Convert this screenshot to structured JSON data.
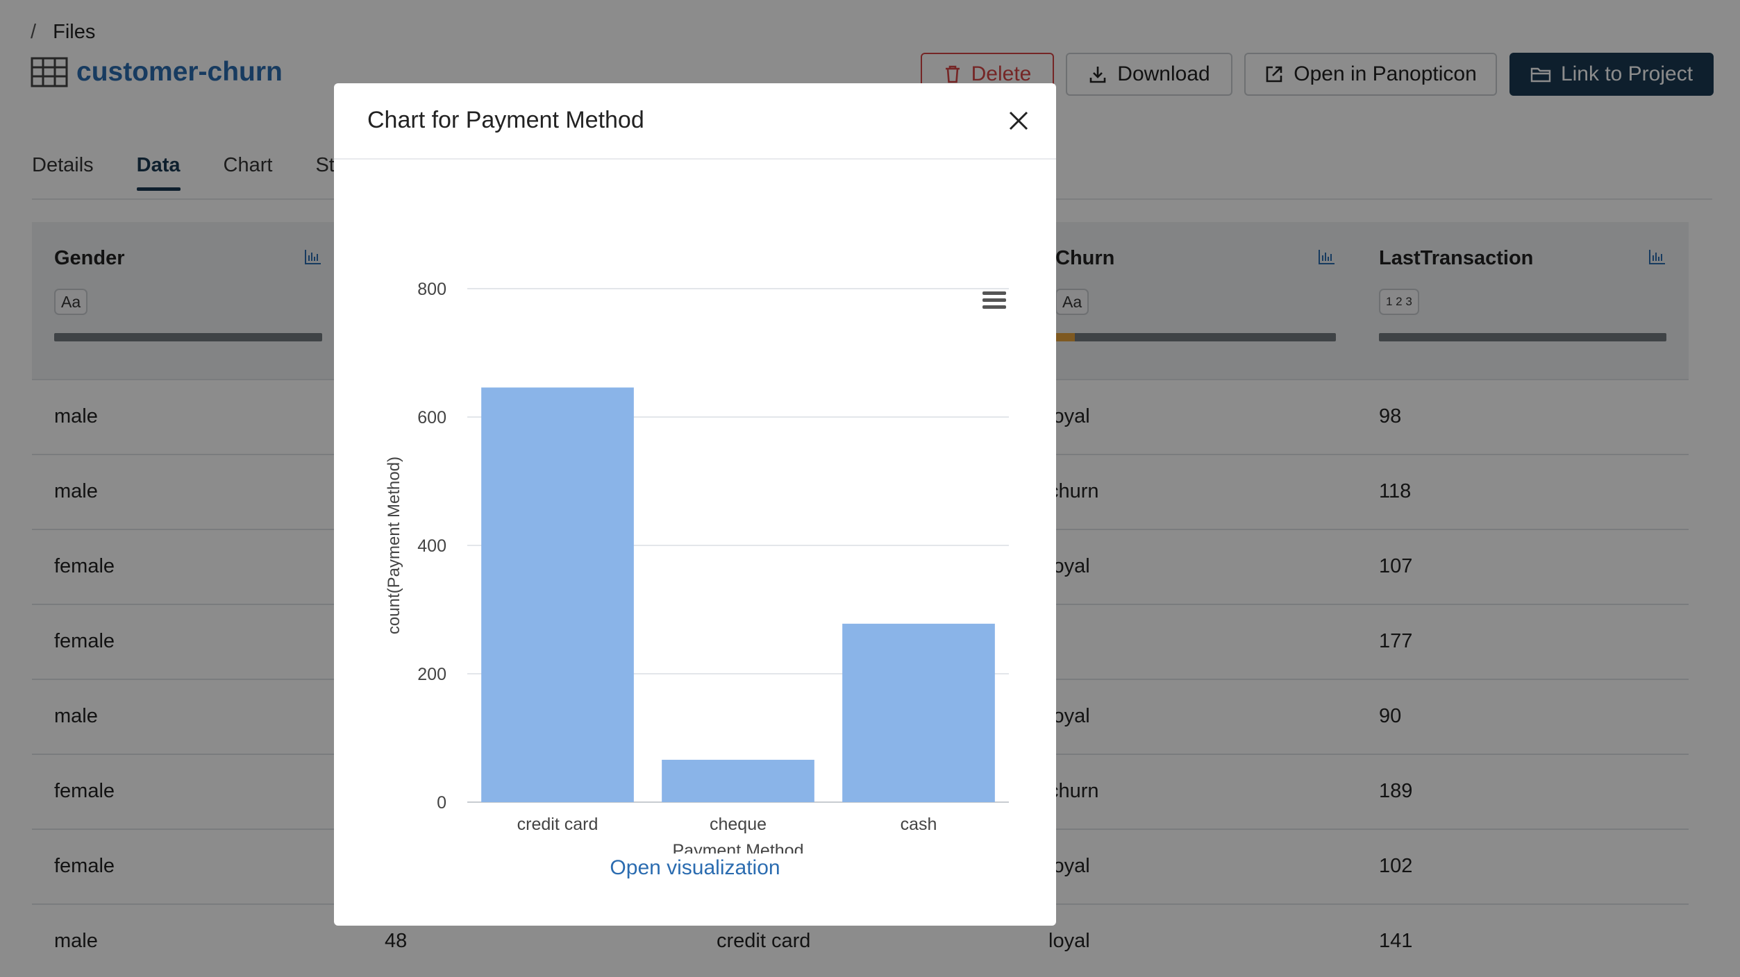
{
  "breadcrumb": {
    "separator": "/",
    "label": "Files"
  },
  "file": {
    "title": "customer-churn"
  },
  "actions": {
    "delete": "Delete",
    "download": "Download",
    "open_panopticon": "Open in Panopticon",
    "link_project": "Link to Project"
  },
  "tabs": [
    {
      "label": "Details"
    },
    {
      "label": "Data"
    },
    {
      "label": "Chart"
    },
    {
      "label": "St"
    }
  ],
  "columns": {
    "gender": {
      "name": "Gender",
      "type": "Aa"
    },
    "churn": {
      "name": "Churn",
      "type": "Aa"
    },
    "last_transaction": {
      "name": "LastTransaction",
      "type": "1 2 3"
    }
  },
  "rows": [
    {
      "gender": "male",
      "churn": "loyal",
      "last": "98"
    },
    {
      "gender": "male",
      "churn": "churn",
      "last": "118"
    },
    {
      "gender": "female",
      "churn": "loyal",
      "last": "107"
    },
    {
      "gender": "female",
      "churn": "",
      "last": "177"
    },
    {
      "gender": "male",
      "churn": "loyal",
      "last": "90"
    },
    {
      "gender": "female",
      "churn": "churn",
      "last": "189"
    },
    {
      "gender": "female",
      "churn": "loyal",
      "last": "102"
    },
    {
      "gender": "male",
      "age": "48",
      "payment": "credit card",
      "churn": "loyal",
      "last": "141"
    }
  ],
  "modal": {
    "title": "Chart for Payment Method",
    "open_visualization": "Open visualization"
  },
  "colors": {
    "bar": "#8ab4e8",
    "accent": "#1a3a52",
    "danger": "#d64545",
    "link": "#2b6cb0"
  },
  "chart_data": {
    "type": "bar",
    "categories": [
      "credit card",
      "cheque",
      "cash"
    ],
    "series": [
      {
        "name": "count(Payment Method)",
        "values": [
          646,
          66,
          278
        ]
      }
    ],
    "xlabel": "Payment Method",
    "ylabel": "count(Payment Method)",
    "ylim": [
      0,
      800
    ],
    "yticks": [
      0,
      200,
      400,
      600,
      800
    ],
    "grid": true,
    "legend": "bottom-center"
  }
}
